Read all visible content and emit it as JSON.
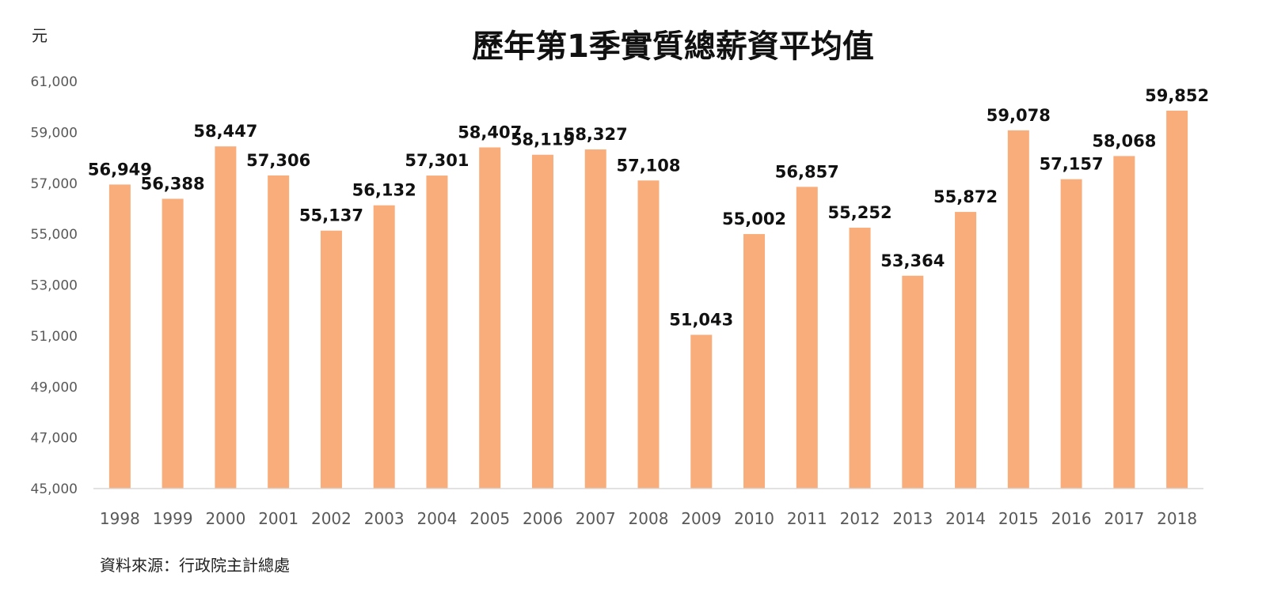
{
  "chart_data": {
    "type": "bar",
    "title": "歷年第1季實質總薪資平均值",
    "unit_label": "元",
    "source": "資料來源：行政院主計總處",
    "xlabel": "",
    "ylabel": "",
    "ylim": [
      45000,
      61000
    ],
    "yticks": [
      "45,000",
      "47,000",
      "49,000",
      "51,000",
      "53,000",
      "55,000",
      "57,000",
      "59,000",
      "61,000"
    ],
    "grid": false,
    "bar_color": "#F9AD7B",
    "categories": [
      "1998",
      "1999",
      "2000",
      "2001",
      "2002",
      "2003",
      "2004",
      "2005",
      "2006",
      "2007",
      "2008",
      "2009",
      "2010",
      "2011",
      "2012",
      "2013",
      "2014",
      "2015",
      "2016",
      "2017",
      "2018"
    ],
    "values": [
      56949,
      56388,
      58447,
      57306,
      55137,
      56132,
      57301,
      58407,
      58119,
      58327,
      57108,
      51043,
      55002,
      56857,
      55252,
      53364,
      55872,
      59078,
      57157,
      58068,
      59852
    ],
    "data_labels": [
      "56,949",
      "56,388",
      "58,447",
      "57,306",
      "55,137",
      "56,132",
      "57,301",
      "58,407",
      "58,119",
      "58,327",
      "57,108",
      "51,043",
      "55,002",
      "56,857",
      "55,252",
      "53,364",
      "55,872",
      "59,078",
      "57,157",
      "58,068",
      "59,852"
    ]
  }
}
